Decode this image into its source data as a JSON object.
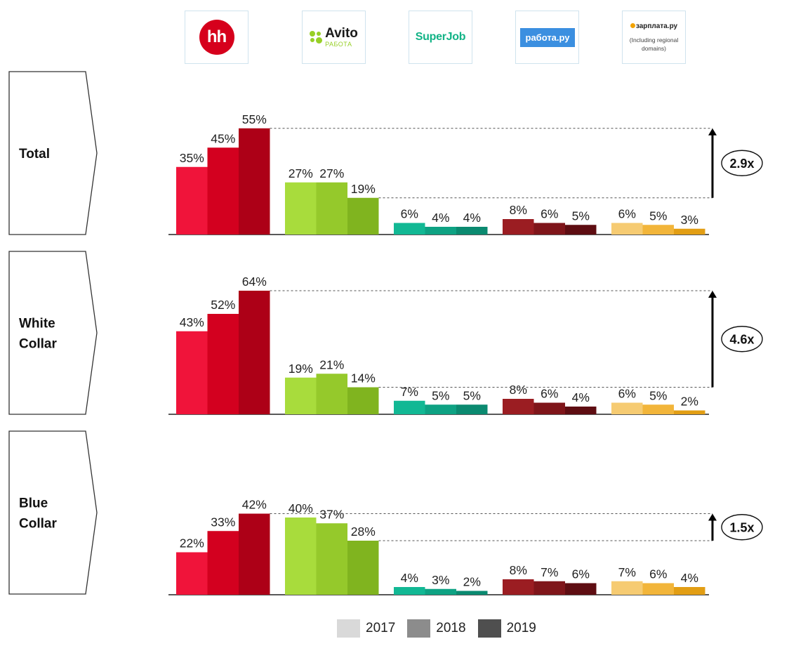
{
  "logos": [
    {
      "name": "hh",
      "text": "hh"
    },
    {
      "name": "Avito",
      "text": "Avito",
      "sub": "РАБОТА"
    },
    {
      "name": "SuperJob",
      "text": "SuperJob"
    },
    {
      "name": "rabota",
      "text": "работа.ру"
    },
    {
      "name": "zarplata",
      "text": "зарплата.ру",
      "note": "(Including regional domains)"
    }
  ],
  "colors": {
    "hh": [
      "#f0143a",
      "#d3001f",
      "#ad0017"
    ],
    "Avito": [
      "#a8dc3c",
      "#95c92b",
      "#80b41f"
    ],
    "SuperJob": [
      "#12b894",
      "#0ea283",
      "#0b8a70"
    ],
    "rabota": [
      "#9b1d22",
      "#7f151a",
      "#5e0d12"
    ],
    "zarplata": [
      "#f6cb72",
      "#f2b53a",
      "#e29e14"
    ]
  },
  "legend": [
    {
      "label": "2017",
      "color": "#d9d9d9"
    },
    {
      "label": "2018",
      "color": "#8c8c8c"
    },
    {
      "label": "2019",
      "color": "#4f4f4f"
    }
  ],
  "chart_data": [
    {
      "type": "bar",
      "title": "Total",
      "categories": [
        "hh",
        "Avito",
        "SuperJob",
        "rabota",
        "zarplata"
      ],
      "years": [
        "2017",
        "2018",
        "2019"
      ],
      "series": [
        {
          "name": "2017",
          "values": [
            35,
            27,
            6,
            8,
            6
          ]
        },
        {
          "name": "2018",
          "values": [
            45,
            27,
            4,
            6,
            5
          ]
        },
        {
          "name": "2019",
          "values": [
            55,
            19,
            4,
            5,
            3
          ]
        }
      ],
      "ratio_label": "2.9x",
      "unit": "%"
    },
    {
      "type": "bar",
      "title": "White Collar",
      "categories": [
        "hh",
        "Avito",
        "SuperJob",
        "rabota",
        "zarplata"
      ],
      "years": [
        "2017",
        "2018",
        "2019"
      ],
      "series": [
        {
          "name": "2017",
          "values": [
            43,
            19,
            7,
            8,
            6
          ]
        },
        {
          "name": "2018",
          "values": [
            52,
            21,
            5,
            6,
            5
          ]
        },
        {
          "name": "2019",
          "values": [
            64,
            14,
            5,
            4,
            2
          ]
        }
      ],
      "ratio_label": "4.6x",
      "unit": "%"
    },
    {
      "type": "bar",
      "title": "Blue Collar",
      "categories": [
        "hh",
        "Avito",
        "SuperJob",
        "rabota",
        "zarplata"
      ],
      "years": [
        "2017",
        "2018",
        "2019"
      ],
      "series": [
        {
          "name": "2017",
          "values": [
            22,
            40,
            4,
            8,
            7
          ]
        },
        {
          "name": "2018",
          "values": [
            33,
            37,
            3,
            7,
            6
          ]
        },
        {
          "name": "2019",
          "values": [
            42,
            28,
            2,
            6,
            4
          ]
        }
      ],
      "ratio_label": "1.5x",
      "unit": "%"
    }
  ]
}
